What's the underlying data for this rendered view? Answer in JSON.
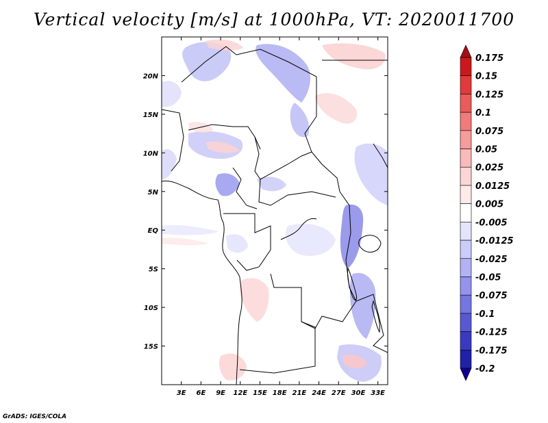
{
  "title": "Vertical velocity [m/s] at 1000hPa, VT: 2020011700",
  "credit": "GrADS: IGES/COLA",
  "map": {
    "lon_range": [
      0,
      34.5
    ],
    "lat_range": [
      -20,
      25
    ],
    "lon_ticks": [
      "3E",
      "6E",
      "9E",
      "12E",
      "15E",
      "18E",
      "21E",
      "24E",
      "27E",
      "30E",
      "33E"
    ],
    "lat_ticks": [
      "20N",
      "15N",
      "10N",
      "5N",
      "EQ",
      "5S",
      "10S",
      "15S"
    ],
    "lon_tick_values": [
      3,
      6,
      9,
      12,
      15,
      18,
      21,
      24,
      27,
      30,
      33
    ],
    "lat_tick_values": [
      20,
      15,
      10,
      5,
      0,
      -5,
      -10,
      -15
    ]
  },
  "colorbar": {
    "labels": [
      "0.175",
      "0.15",
      "0.125",
      "0.1",
      "0.075",
      "0.05",
      "0.025",
      "0.0125",
      "0.005",
      "-0.005",
      "-0.0125",
      "-0.025",
      "-0.05",
      "-0.075",
      "-0.1",
      "-0.125",
      "-0.175",
      "-0.2"
    ],
    "colors": [
      "#a50f15",
      "#cb181d",
      "#e03a3a",
      "#ea5b5b",
      "#f07b7b",
      "#f59c9c",
      "#f9baba",
      "#fcd6d6",
      "#feeaea",
      "#ffffff",
      "#e4e4fc",
      "#ccccfa",
      "#b2b2f4",
      "#9494ec",
      "#7676e0",
      "#5858d2",
      "#3a3ac0",
      "#2020a8",
      "#100090"
    ]
  }
}
